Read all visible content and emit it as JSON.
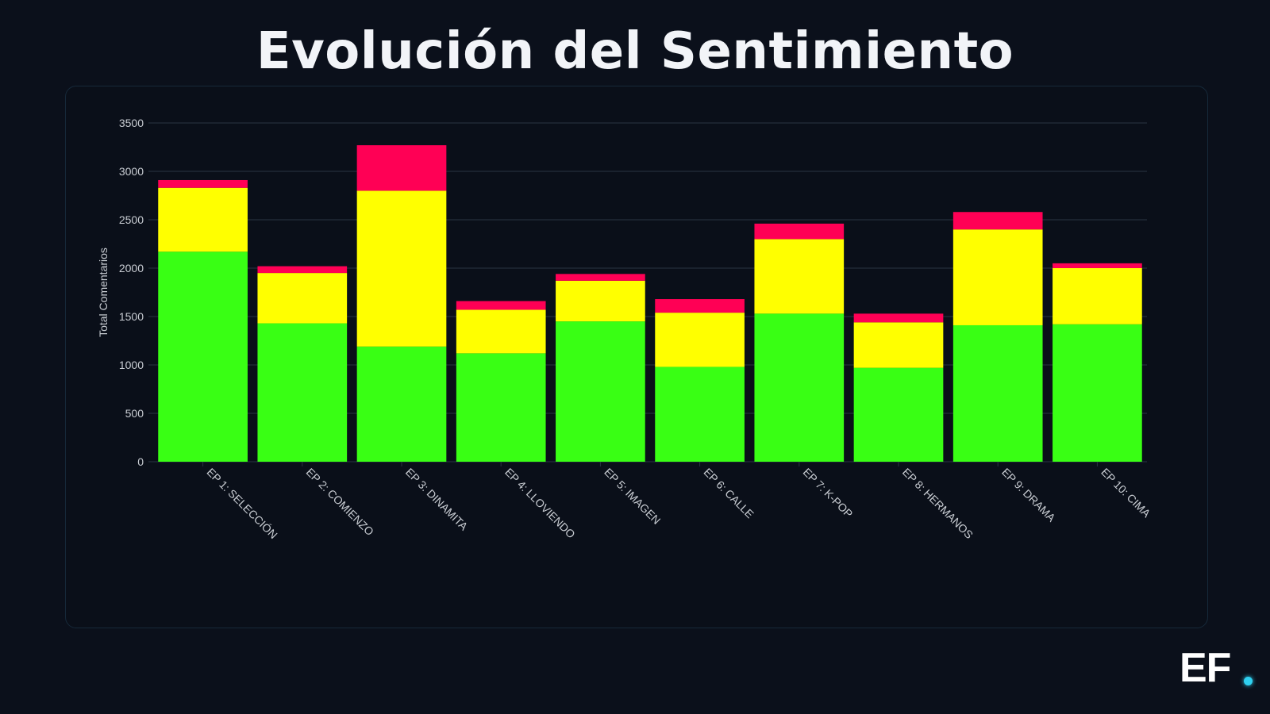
{
  "page": {
    "title": "Evolución del Sentimiento",
    "brand": "EF"
  },
  "colors": {
    "background": "#0b101b",
    "positive": "#39ff14",
    "neutral": "#ffff00",
    "negative": "#ff0055",
    "grid": "#2a3443",
    "tick_text": "#c8ccd2"
  },
  "chart_data": {
    "type": "bar",
    "stacked": true,
    "title": "",
    "xlabel": "",
    "ylabel": "Total Comentarios",
    "ylim": [
      0,
      3500
    ],
    "yticks": [
      0,
      500,
      1000,
      1500,
      2000,
      2500,
      3000,
      3500
    ],
    "grid": true,
    "categories": [
      "EP 1: SELECCIÓN",
      "EP 2: COMIENZO",
      "EP 3: DINAMITA",
      "EP 4: LLOVIENDO",
      "EP 5: IMAGEN",
      "EP 6: CALLE",
      "EP 7: K-POP",
      "EP 8: HERMANOS",
      "EP 9: DRAMA",
      "EP 10: CIMA"
    ],
    "series": [
      {
        "color": "#39ff14",
        "values": [
          2170,
          1430,
          1190,
          1120,
          1450,
          980,
          1530,
          970,
          1410,
          1420
        ]
      },
      {
        "color": "#ffff00",
        "values": [
          660,
          520,
          1610,
          450,
          420,
          560,
          770,
          470,
          990,
          580
        ]
      },
      {
        "color": "#ff0055",
        "values": [
          80,
          70,
          470,
          90,
          70,
          140,
          160,
          90,
          180,
          50
        ]
      }
    ]
  }
}
